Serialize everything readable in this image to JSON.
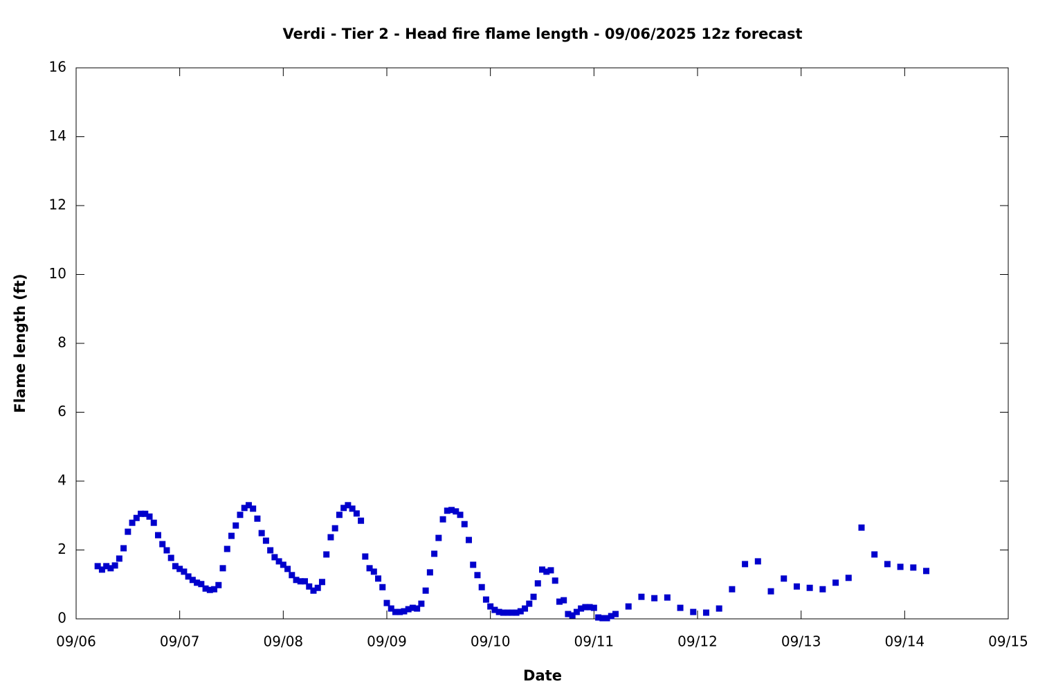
{
  "chart_data": {
    "type": "scatter",
    "title": "Verdi - Tier 2 - Head fire flame length - 09/06/2025 12z forecast",
    "x_label": "Date",
    "y_label": "Flame length (ft)",
    "series": [
      {
        "name": "Head fire flame length",
        "color": "#0000cc",
        "x": [
          5,
          6,
          7,
          8,
          9,
          10,
          11,
          12,
          13,
          14,
          15,
          16,
          17,
          18,
          19,
          20,
          21,
          22,
          23,
          24,
          25,
          26,
          27,
          28,
          29,
          30,
          31,
          32,
          33,
          34,
          35,
          36,
          37,
          38,
          39,
          40,
          41,
          42,
          43,
          44,
          45,
          46,
          47,
          48,
          49,
          50,
          51,
          52,
          53,
          54,
          55,
          56,
          57,
          58,
          59,
          60,
          61,
          62,
          63,
          64,
          65,
          66,
          67,
          68,
          69,
          70,
          71,
          72,
          73,
          74,
          75,
          76,
          77,
          78,
          79,
          80,
          81,
          82,
          83,
          84,
          85,
          86,
          87,
          88,
          89,
          90,
          91,
          92,
          93,
          94,
          95,
          96,
          97,
          98,
          99,
          100,
          101,
          102,
          103,
          104,
          105,
          106,
          107,
          108,
          109,
          110,
          111,
          112,
          113,
          114,
          115,
          116,
          117,
          118,
          119,
          120,
          121,
          122,
          123,
          124,
          125,
          128,
          131,
          134,
          137,
          140,
          143,
          146,
          149,
          152,
          155,
          158,
          161,
          164,
          167,
          170,
          173,
          176,
          179,
          182,
          185,
          188,
          191,
          194,
          197
        ],
        "values": [
          1.53,
          1.43,
          1.53,
          1.47,
          1.55,
          1.75,
          2.05,
          2.53,
          2.79,
          2.93,
          3.05,
          3.05,
          2.97,
          2.79,
          2.43,
          2.17,
          1.99,
          1.77,
          1.53,
          1.45,
          1.37,
          1.23,
          1.13,
          1.05,
          1.01,
          0.88,
          0.84,
          0.86,
          0.98,
          1.47,
          2.03,
          2.41,
          2.71,
          3.02,
          3.22,
          3.3,
          3.2,
          2.91,
          2.49,
          2.27,
          1.99,
          1.79,
          1.67,
          1.57,
          1.45,
          1.27,
          1.13,
          1.09,
          1.09,
          0.94,
          0.82,
          0.9,
          1.07,
          1.87,
          2.37,
          2.63,
          3.02,
          3.22,
          3.3,
          3.2,
          3.06,
          2.85,
          1.81,
          1.47,
          1.37,
          1.17,
          0.92,
          0.46,
          0.3,
          0.2,
          0.2,
          0.22,
          0.28,
          0.32,
          0.3,
          0.44,
          0.82,
          1.35,
          1.89,
          2.35,
          2.89,
          3.14,
          3.16,
          3.12,
          3.02,
          2.75,
          2.29,
          1.57,
          1.27,
          0.92,
          0.56,
          0.36,
          0.26,
          0.2,
          0.18,
          0.18,
          0.18,
          0.18,
          0.22,
          0.3,
          0.44,
          0.64,
          1.03,
          1.43,
          1.37,
          1.41,
          1.11,
          0.5,
          0.54,
          0.14,
          0.1,
          0.2,
          0.3,
          0.34,
          0.34,
          0.32,
          0.04,
          0.02,
          0.02,
          0.08,
          0.14,
          0.36,
          0.64,
          0.6,
          0.62,
          0.32,
          0.2,
          0.18,
          0.3,
          0.86,
          1.59,
          1.67,
          0.8,
          1.17,
          0.94,
          0.9,
          0.86,
          1.05,
          1.19,
          2.65,
          1.87,
          1.59,
          1.51,
          1.49,
          1.39
        ]
      }
    ],
    "xlim": [
      0,
      216
    ],
    "xticks": [
      {
        "value": 0,
        "label": "09/06"
      },
      {
        "value": 24,
        "label": "09/07"
      },
      {
        "value": 48,
        "label": "09/08"
      },
      {
        "value": 72,
        "label": "09/09"
      },
      {
        "value": 96,
        "label": "09/10"
      },
      {
        "value": 120,
        "label": "09/11"
      },
      {
        "value": 144,
        "label": "09/12"
      },
      {
        "value": 168,
        "label": "09/13"
      },
      {
        "value": 192,
        "label": "09/14"
      },
      {
        "value": 216,
        "label": "09/15"
      }
    ],
    "ylim": [
      0,
      16
    ],
    "yticks": [
      0,
      2,
      4,
      6,
      8,
      10,
      12,
      14,
      16
    ]
  }
}
